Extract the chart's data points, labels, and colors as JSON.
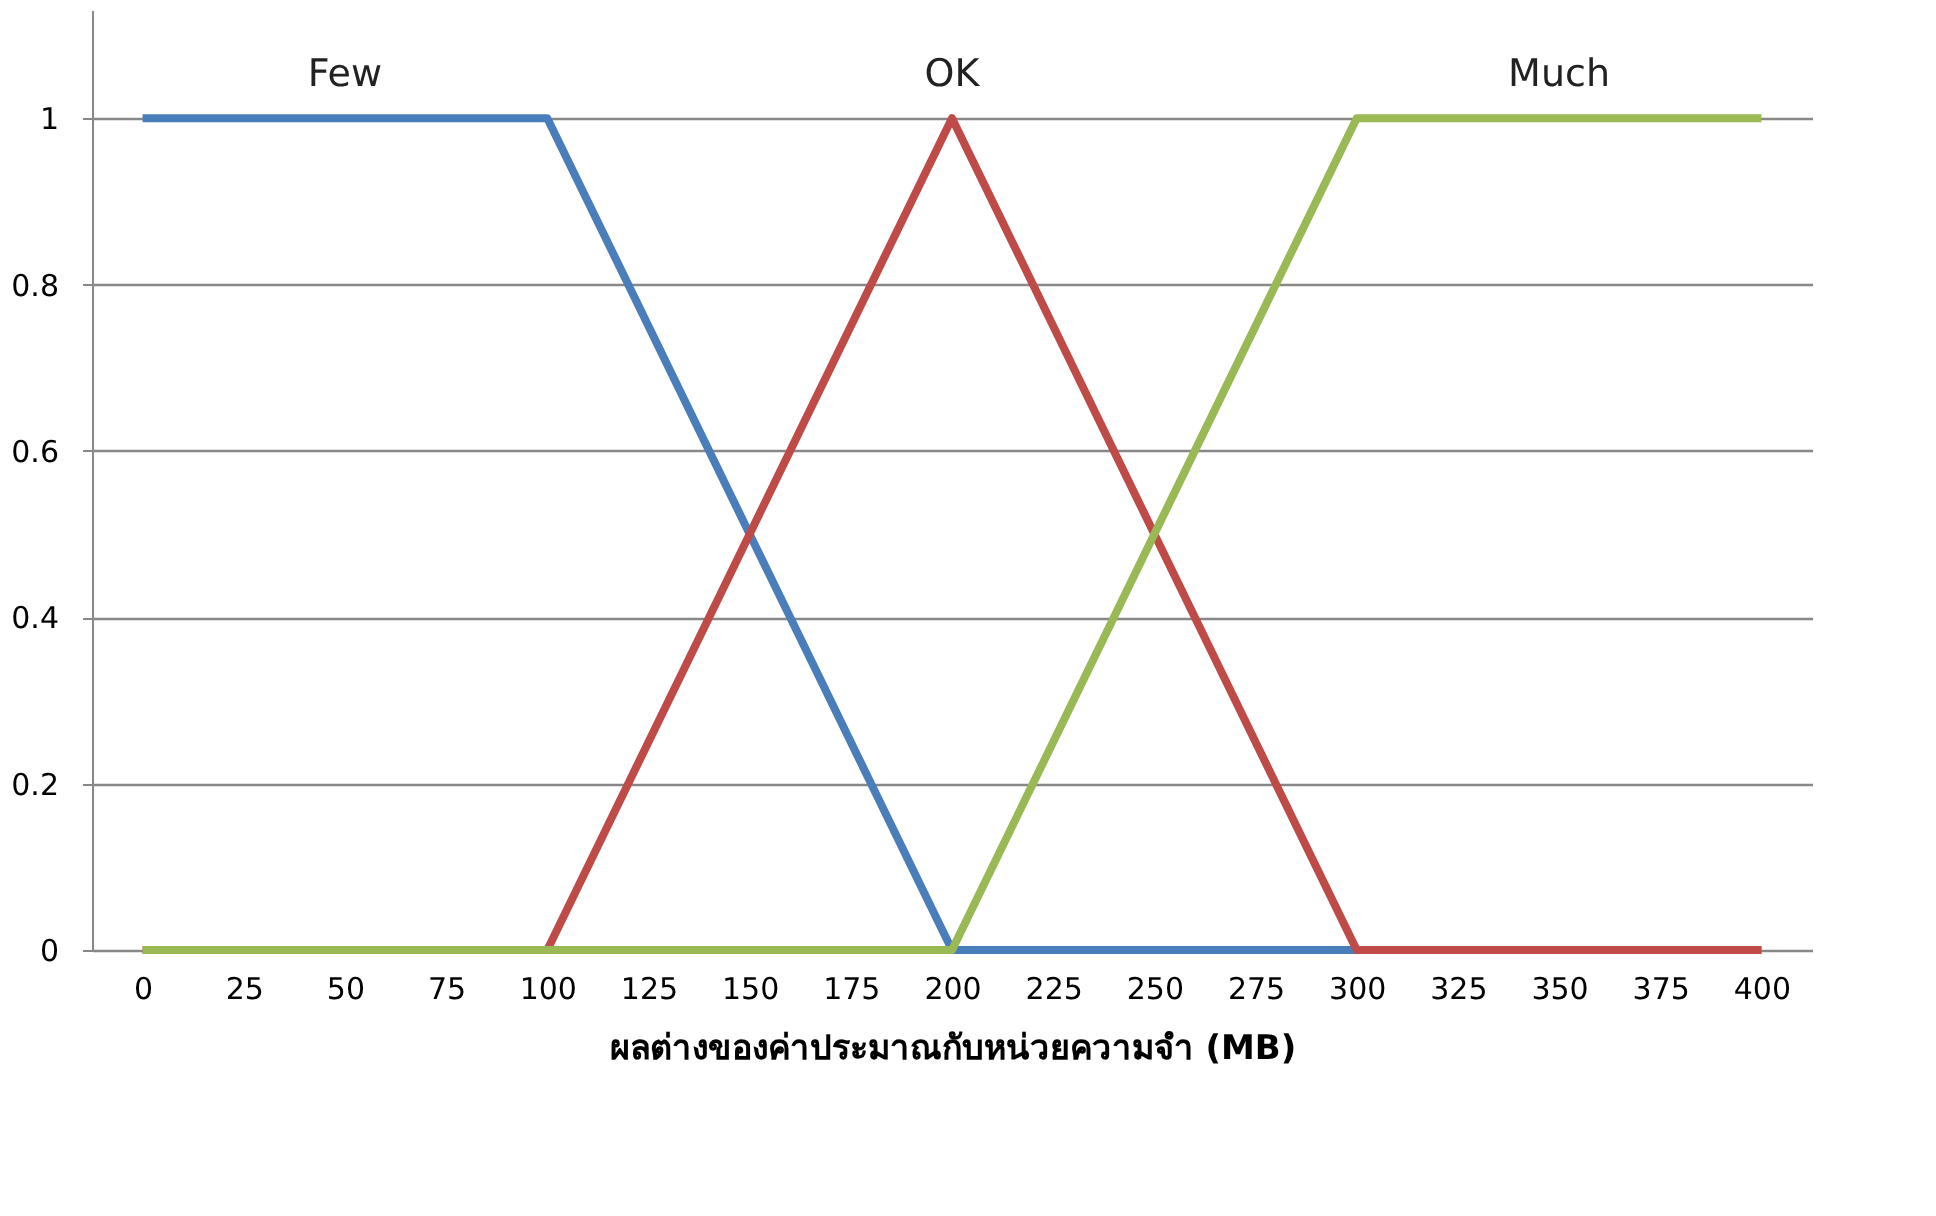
{
  "chart_data": {
    "type": "line",
    "xlabel": "ผลต่างของค่าประมาณกับหน่วยความจำ (MB)",
    "series": [
      {
        "name": "Few",
        "color": "#4a7ebb",
        "x": [
          0,
          100,
          200,
          400
        ],
        "values": [
          1,
          1,
          0,
          0
        ]
      },
      {
        "name": "OK",
        "color": "#be4b48",
        "x": [
          0,
          100,
          200,
          300,
          400
        ],
        "values": [
          0,
          0,
          1,
          0,
          0
        ]
      },
      {
        "name": "Much",
        "color": "#98b954",
        "x": [
          0,
          200,
          300,
          400
        ],
        "values": [
          0,
          0,
          1,
          1
        ]
      }
    ],
    "xlim": [
      -12.5,
      412.5
    ],
    "xticks": [
      0,
      25,
      50,
      75,
      100,
      125,
      150,
      175,
      200,
      225,
      250,
      275,
      300,
      325,
      350,
      375,
      400
    ],
    "ylim": [
      0,
      1.13
    ],
    "yticks": [
      0,
      0.2,
      0.4,
      0.6,
      0.8,
      1
    ],
    "grid": "y",
    "legend": false,
    "marker": "none",
    "line_style": "solid"
  }
}
